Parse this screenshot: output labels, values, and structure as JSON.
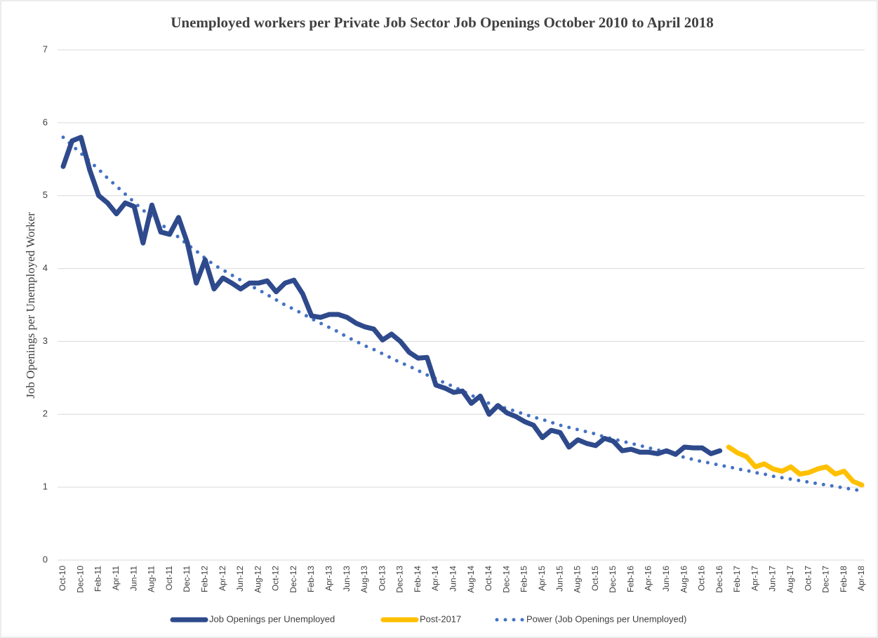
{
  "chart_data": {
    "type": "line",
    "title": "Unemployed workers per Private Job Sector Job Openings October 2010 to April 2018",
    "y_label": "Job Openings  per Unemployed  Worker",
    "categories": [
      "Oct-10",
      null,
      "Dec-10",
      null,
      "Feb-11",
      null,
      "Apr-11",
      null,
      "Jun-11",
      null,
      "Aug-11",
      null,
      "Oct-11",
      null,
      "Dec-11",
      null,
      "Feb-12",
      null,
      "Apr-12",
      null,
      "Jun-12",
      null,
      "Aug-12",
      null,
      "Oct-12",
      null,
      "Dec-12",
      null,
      "Feb-13",
      null,
      "Apr-13",
      null,
      "Jun-13",
      null,
      "Aug-13",
      null,
      "Oct-13",
      null,
      "Dec-13",
      null,
      "Feb-14",
      null,
      "Apr-14",
      null,
      "Jun-14",
      null,
      "Aug-14",
      null,
      "Oct-14",
      null,
      "Dec-14",
      null,
      "Feb-15",
      null,
      "Apr-15",
      null,
      "Jun-15",
      null,
      "Aug-15",
      null,
      "Oct-15",
      null,
      "Dec-15",
      null,
      "Feb-16",
      null,
      "Apr-16",
      null,
      "Jun-16",
      null,
      "Aug-16",
      null,
      "Oct-16",
      null,
      "Dec-16",
      null,
      "Feb-17",
      null,
      "Apr-17",
      null,
      "Jun-17",
      null,
      "Aug-17",
      null,
      "Oct-17",
      null,
      "Dec-17",
      null,
      "Feb-18",
      null,
      "Apr-18"
    ],
    "series": [
      {
        "name": "Job Openings per Unemployed",
        "color": "#2e4a8c",
        "line_style": "solid",
        "values": [
          5.4,
          5.75,
          5.8,
          5.35,
          5.0,
          4.9,
          4.75,
          4.9,
          4.85,
          4.35,
          4.87,
          4.5,
          4.47,
          4.7,
          4.35,
          3.8,
          4.12,
          3.72,
          3.87,
          3.8,
          3.72,
          3.8,
          3.8,
          3.83,
          3.68,
          3.8,
          3.84,
          3.65,
          3.35,
          3.33,
          3.37,
          3.37,
          3.33,
          3.25,
          3.2,
          3.17,
          3.02,
          3.1,
          3.0,
          2.85,
          2.77,
          2.78,
          2.4,
          2.36,
          2.3,
          2.32,
          2.15,
          2.25,
          2.0,
          2.12,
          2.02,
          1.97,
          1.9,
          1.85,
          1.68,
          1.78,
          1.75,
          1.55,
          1.65,
          1.6,
          1.57,
          1.67,
          1.63,
          1.5,
          1.52,
          1.48,
          1.48,
          1.46,
          1.5,
          1.45,
          1.55,
          1.54,
          1.54,
          1.46,
          1.5,
          null,
          null,
          null,
          null,
          null,
          null,
          null,
          null,
          null,
          null,
          null,
          null,
          null,
          null,
          null,
          null
        ]
      },
      {
        "name": "Post-2017",
        "color": "#ffc000",
        "line_style": "solid",
        "values": [
          null,
          null,
          null,
          null,
          null,
          null,
          null,
          null,
          null,
          null,
          null,
          null,
          null,
          null,
          null,
          null,
          null,
          null,
          null,
          null,
          null,
          null,
          null,
          null,
          null,
          null,
          null,
          null,
          null,
          null,
          null,
          null,
          null,
          null,
          null,
          null,
          null,
          null,
          null,
          null,
          null,
          null,
          null,
          null,
          null,
          null,
          null,
          null,
          null,
          null,
          null,
          null,
          null,
          null,
          null,
          null,
          null,
          null,
          null,
          null,
          null,
          null,
          null,
          null,
          null,
          null,
          null,
          null,
          null,
          null,
          null,
          null,
          null,
          null,
          null,
          1.55,
          1.47,
          1.42,
          1.28,
          1.32,
          1.25,
          1.22,
          1.28,
          1.18,
          1.2,
          1.25,
          1.28,
          1.18,
          1.22,
          1.08,
          1.03
        ]
      },
      {
        "name": "Power (Job Openings per Unemployed)",
        "color": "#4472c4",
        "line_style": "dotted",
        "values": [
          5.8,
          5.69,
          5.58,
          5.47,
          5.36,
          5.24,
          5.13,
          5.02,
          4.91,
          4.8,
          4.71,
          4.61,
          4.52,
          4.43,
          4.33,
          4.24,
          4.14,
          4.05,
          3.98,
          3.91,
          3.84,
          3.77,
          3.71,
          3.64,
          3.57,
          3.5,
          3.44,
          3.38,
          3.31,
          3.25,
          3.19,
          3.13,
          3.06,
          3.0,
          2.94,
          2.89,
          2.83,
          2.77,
          2.71,
          2.66,
          2.6,
          2.54,
          2.49,
          2.43,
          2.38,
          2.32,
          2.26,
          2.21,
          2.15,
          2.11,
          2.08,
          2.04,
          2.0,
          1.96,
          1.93,
          1.89,
          1.85,
          1.82,
          1.79,
          1.76,
          1.73,
          1.69,
          1.66,
          1.63,
          1.6,
          1.57,
          1.54,
          1.51,
          1.48,
          1.44,
          1.41,
          1.38,
          1.35,
          1.33,
          1.3,
          1.28,
          1.25,
          1.23,
          1.2,
          1.18,
          1.15,
          1.13,
          1.11,
          1.09,
          1.07,
          1.05,
          1.03,
          1.01,
          0.99,
          0.97,
          0.95
        ]
      }
    ],
    "ylim": [
      0,
      7
    ],
    "yticks": [
      0,
      1,
      2,
      3,
      4,
      5,
      6,
      7
    ],
    "grid": true,
    "legend": "bottom"
  }
}
